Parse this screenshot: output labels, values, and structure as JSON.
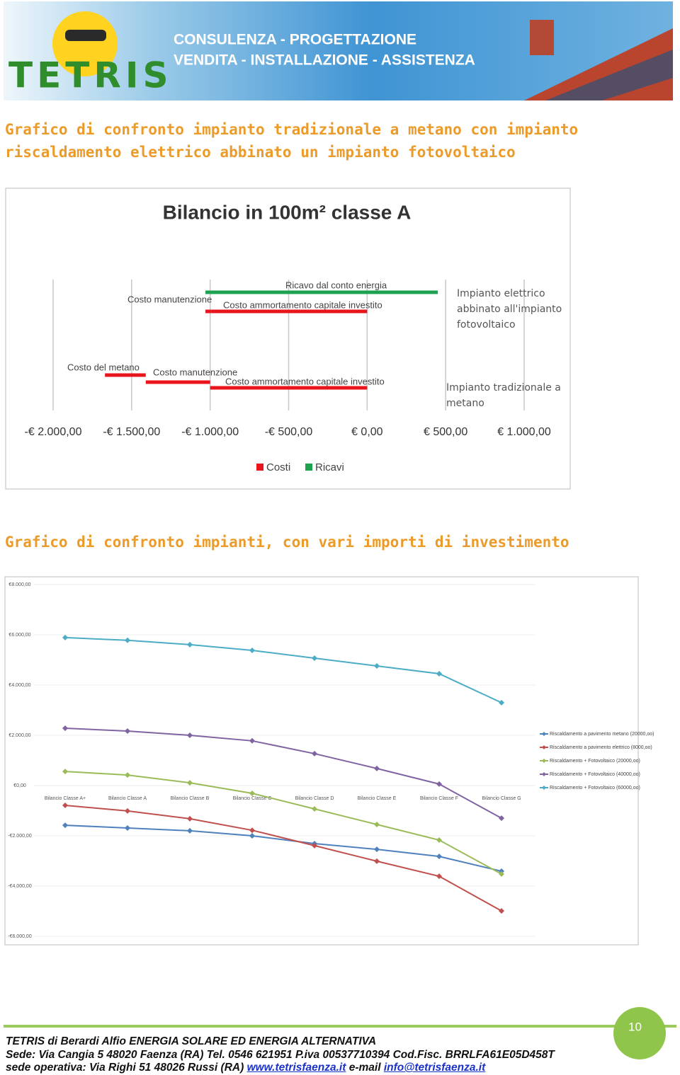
{
  "header": {
    "logo": "TETRIS",
    "tagline": [
      "CONSULENZA - PROGETTAZIONE",
      "VENDITA - INSTALLAZIONE - ASSISTENZA"
    ]
  },
  "headings": [
    "Grafico di confronto impianto tradizionale a metano con impianto riscaldamento elettrico abbinato un impianto fotovoltaico",
    "Grafico di confronto impianti, con vari importi di investimento"
  ],
  "chart_data": [
    {
      "type": "floating-bar",
      "title": "Bilancio in 100m² classe A",
      "rows": [
        {
          "label": "Impianto elettrico abbinato all'impianto fotovoltaico",
          "segments": [
            {
              "name": "Ricavo dal conto energia",
              "from": -1030,
              "to": 450,
              "color": "#1ea24f"
            },
            {
              "name": "Costo manutenzione",
              "from": -1030,
              "to": -990,
              "color": "#e8161c"
            },
            {
              "name": "Costo ammortamento capitale investito",
              "from": -990,
              "to": 0,
              "color": "#e8161c"
            }
          ]
        },
        {
          "label": "Impianto tradizionale a metano",
          "segments": [
            {
              "name": "Costo del metano",
              "from": -1670,
              "to": -1410,
              "color": "#e8161c"
            },
            {
              "name": "Costo manutenzione",
              "from": -1410,
              "to": -1000,
              "color": "#e8161c"
            },
            {
              "name": "Costo ammortamento capitale investito",
              "from": -1000,
              "to": 0,
              "color": "#e8161c"
            }
          ]
        }
      ],
      "xlim": [
        -2000,
        1000
      ],
      "xticks": [
        {
          "value": -2000,
          "label": "-€ 2.000,00"
        },
        {
          "value": -1500,
          "label": "-€ 1.500,00"
        },
        {
          "value": -1000,
          "label": "-€ 1.000,00"
        },
        {
          "value": -500,
          "label": "-€ 500,00"
        },
        {
          "value": 0,
          "label": "€ 0,00"
        },
        {
          "value": 500,
          "label": "€ 500,00"
        },
        {
          "value": 1000,
          "label": "€ 1.000,00"
        }
      ],
      "grid": true,
      "legend": [
        {
          "name": "Costi",
          "color": "#e8161c"
        },
        {
          "name": "Ricavi",
          "color": "#1ea24f"
        }
      ]
    },
    {
      "type": "line",
      "categories": [
        "Bilancio Classe A+",
        "Bilancio Classe A",
        "Bilancio Classe B",
        "Bilancio Classe C",
        "Bilancio Classe D",
        "Bilancio Classe E",
        "Bilancio Classe F",
        "Bilancio Classe G"
      ],
      "series": [
        {
          "name": "Riscaldamento a pavimento metano (20000,oo)",
          "color": "#4f81bd",
          "values": [
            -1580,
            -1690,
            -1800,
            -2000,
            -2310,
            -2540,
            -2820,
            -3410
          ]
        },
        {
          "name": "Riscaldamento a pavimento elettrico (8000,oo)",
          "color": "#c0504d",
          "values": [
            -790,
            -1010,
            -1320,
            -1780,
            -2390,
            -3010,
            -3610,
            -4990
          ]
        },
        {
          "name": "Riscaldamento + Fotovoltaico (20000,oo)",
          "color": "#9bbb59",
          "values": [
            560,
            420,
            110,
            -310,
            -930,
            -1550,
            -2170,
            -3520
          ]
        },
        {
          "name": "Riscaldamento + Fotovoltaico (40000,oo)",
          "color": "#8064a2",
          "values": [
            2280,
            2170,
            2000,
            1780,
            1270,
            680,
            60,
            -1300
          ]
        },
        {
          "name": "Riscaldamento + Fotovoltaico (60000,oo)",
          "color": "#4bacc6",
          "values": [
            5890,
            5780,
            5610,
            5380,
            5070,
            4760,
            4450,
            3300
          ]
        }
      ],
      "ylim": [
        -6000,
        8000
      ],
      "yticks": [
        {
          "value": 8000,
          "label": "€8.000,00"
        },
        {
          "value": 6000,
          "label": "€6.000,00"
        },
        {
          "value": 4000,
          "label": "€4.000,00"
        },
        {
          "value": 2000,
          "label": "€2.000,00"
        },
        {
          "value": 0,
          "label": "€0,00"
        },
        {
          "value": -2000,
          "label": "-€2.000,00"
        },
        {
          "value": -4000,
          "label": "-€4.000,00"
        },
        {
          "value": -6000,
          "label": "-€6.000,00"
        }
      ],
      "grid": true,
      "legend": "right"
    }
  ],
  "footer": {
    "page": "10",
    "lines": [
      "TETRIS di Berardi Alfio ENERGIA SOLARE ED ENERGIA ALTERNATIVA",
      "Sede: Via Cangia 5 48020 Faenza (RA) Tel. 0546 621951 P.iva 00537710394 Cod.Fisc. BRRLFA61E05D458T"
    ],
    "operative": "sede operativa: Via Righi 51 48026 Russi (RA)",
    "website": "www.tetrisfaenza.it",
    "email_label": "e-mail",
    "email": "info@tetrisfaenza.it"
  }
}
